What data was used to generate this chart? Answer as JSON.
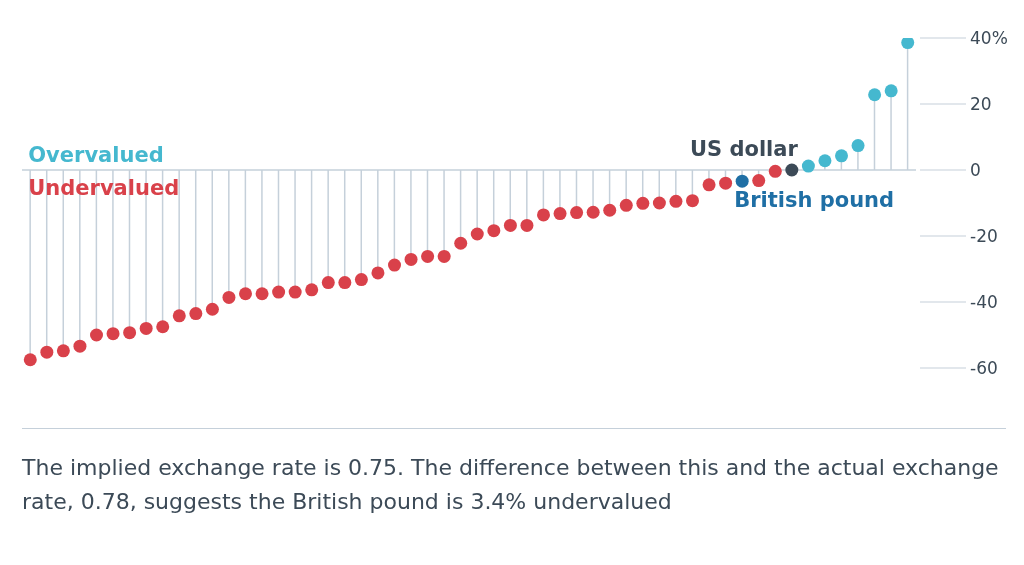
{
  "chart_data": {
    "type": "lollipop",
    "categories": [
      null,
      null,
      null,
      null,
      null,
      null,
      null,
      null,
      null,
      null,
      null,
      null,
      null,
      null,
      null,
      null,
      null,
      null,
      null,
      null,
      null,
      null,
      null,
      null,
      null,
      null,
      null,
      null,
      null,
      null,
      null,
      null,
      null,
      null,
      null,
      null,
      null,
      null,
      null,
      null,
      null,
      null,
      null,
      null,
      null,
      null,
      null,
      null,
      null,
      null,
      null,
      null,
      null,
      null
    ],
    "values": [
      -57.5,
      -55.2,
      -54.8,
      -53.4,
      -50.0,
      -49.6,
      -49.3,
      -48.0,
      -47.5,
      -44.2,
      -43.5,
      -42.2,
      -38.6,
      -37.5,
      -37.5,
      -37.0,
      -37.0,
      -36.3,
      -34.1,
      -34.1,
      -33.2,
      -31.2,
      -28.8,
      -27.1,
      -26.2,
      -26.2,
      -22.2,
      -19.4,
      -18.4,
      -16.8,
      -16.8,
      -13.6,
      -13.2,
      -12.9,
      -12.8,
      -12.2,
      -10.7,
      -10.1,
      -10.0,
      -9.5,
      -9.3,
      -4.5,
      -4.0,
      -3.4,
      -3.2,
      -0.4,
      0,
      1.2,
      2.8,
      4.3,
      7.4,
      22.8,
      24.0,
      38.6
    ],
    "colors": [
      "#d9414a",
      "#d9414a",
      "#d9414a",
      "#d9414a",
      "#d9414a",
      "#d9414a",
      "#d9414a",
      "#d9414a",
      "#d9414a",
      "#d9414a",
      "#d9414a",
      "#d9414a",
      "#d9414a",
      "#d9414a",
      "#d9414a",
      "#d9414a",
      "#d9414a",
      "#d9414a",
      "#d9414a",
      "#d9414a",
      "#d9414a",
      "#d9414a",
      "#d9414a",
      "#d9414a",
      "#d9414a",
      "#d9414a",
      "#d9414a",
      "#d9414a",
      "#d9414a",
      "#d9414a",
      "#d9414a",
      "#d9414a",
      "#d9414a",
      "#d9414a",
      "#d9414a",
      "#d9414a",
      "#d9414a",
      "#d9414a",
      "#d9414a",
      "#d9414a",
      "#d9414a",
      "#d9414a",
      "#d9414a",
      "#1f6fa5",
      "#d9414a",
      "#d9414a",
      "#3c4a57",
      "#45b8cf",
      "#45b8cf",
      "#45b8cf",
      "#45b8cf",
      "#45b8cf",
      "#45b8cf",
      "#45b8cf"
    ],
    "ylim": [
      -60,
      40
    ],
    "yticks": [
      {
        "value": 40,
        "label": "40%"
      },
      20,
      0,
      -20,
      -40,
      -60
    ],
    "grid": "y",
    "marker": "circle",
    "annotations": [
      "Overvalued",
      "Undervalued",
      "The implied exchange rate is 0.75. The difference between this and the actual exchange rate, 0.78, suggests the British pound is 3.4% undervalued",
      "British pound",
      "US dollar"
    ]
  }
}
